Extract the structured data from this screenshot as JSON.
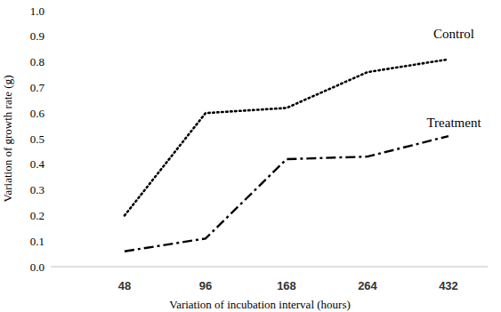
{
  "chart_data": {
    "type": "line",
    "x_label": "Variation of incubation interval (hours)",
    "y_label": "Variation of growth rate (g)",
    "categories": [
      "48",
      "96",
      "168",
      "264",
      "432"
    ],
    "series": [
      {
        "name": "Control",
        "color": "#000000",
        "line_style": "dotted",
        "values": [
          0.2,
          0.6,
          0.62,
          0.76,
          0.81
        ]
      },
      {
        "name": "Treatment",
        "color": "#000000",
        "line_style": "dashdot",
        "values": [
          0.06,
          0.11,
          0.42,
          0.43,
          0.51
        ]
      }
    ],
    "ylim": [
      0,
      1
    ],
    "yticks": [
      {
        "value": 0,
        "label": "0.0"
      },
      0.1,
      0.2,
      0.3,
      0.4,
      0.5,
      0.6,
      0.7,
      0.8,
      0.9,
      {
        "value": 1,
        "label": "1.0"
      }
    ],
    "grid": false
  }
}
